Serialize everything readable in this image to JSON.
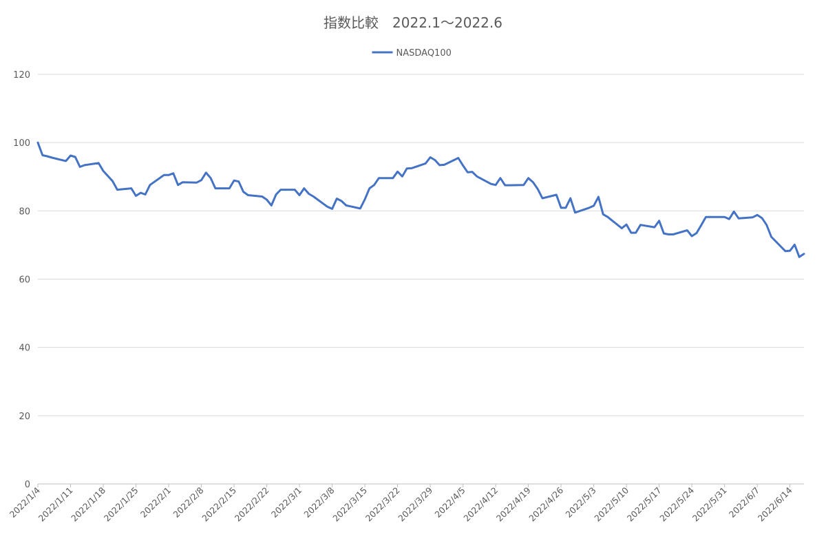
{
  "chart_data": {
    "type": "line",
    "title": "指数比較　2022.1～2022.6",
    "xlabel": "",
    "ylabel": "",
    "ylim": [
      0,
      120
    ],
    "yticks": [
      0,
      20,
      40,
      60,
      80,
      100,
      120
    ],
    "grid": true,
    "legend_position": "top",
    "x_tick_labels": [
      "2022/1/4",
      "2022/1/11",
      "2022/1/18",
      "2022/1/25",
      "2022/2/1",
      "2022/2/8",
      "2022/2/15",
      "2022/2/22",
      "2022/3/1",
      "2022/3/8",
      "2022/3/15",
      "2022/3/22",
      "2022/3/29",
      "2022/4/5",
      "2022/4/12",
      "2022/4/19",
      "2022/4/26",
      "2022/5/3",
      "2022/5/10",
      "2022/5/17",
      "2022/5/24",
      "2022/5/31",
      "2022/6/7",
      "2022/6/14"
    ],
    "x_range": [
      "2022/1/4",
      "2022/6/17"
    ],
    "series": [
      {
        "name": "NASDAQ100",
        "color": "#4472C4",
        "points": [
          [
            "2022/1/4",
            100
          ],
          [
            "2022/1/5",
            96.3
          ],
          [
            "2022/1/6",
            96
          ],
          [
            "2022/1/7",
            95.6
          ],
          [
            "2022/1/10",
            94.6
          ],
          [
            "2022/1/11",
            96.2
          ],
          [
            "2022/1/12",
            95.8
          ],
          [
            "2022/1/13",
            92.9
          ],
          [
            "2022/1/14",
            93.4
          ],
          [
            "2022/1/17",
            94
          ],
          [
            "2022/1/18",
            91.7
          ],
          [
            "2022/1/19",
            90.2
          ],
          [
            "2022/1/20",
            88.7
          ],
          [
            "2022/1/21",
            86.2
          ],
          [
            "2022/1/24",
            86.6
          ],
          [
            "2022/1/25",
            84.4
          ],
          [
            "2022/1/26",
            85.3
          ],
          [
            "2022/1/27",
            84.8
          ],
          [
            "2022/1/28",
            87.6
          ],
          [
            "2022/1/31",
            90.5
          ],
          [
            "2022/2/1",
            90.5
          ],
          [
            "2022/2/2",
            91
          ],
          [
            "2022/2/3",
            87.6
          ],
          [
            "2022/2/4",
            88.4
          ],
          [
            "2022/2/7",
            88.3
          ],
          [
            "2022/2/8",
            89
          ],
          [
            "2022/2/9",
            91.2
          ],
          [
            "2022/2/10",
            89.6
          ],
          [
            "2022/2/11",
            86.6
          ],
          [
            "2022/2/14",
            86.6
          ],
          [
            "2022/2/15",
            88.9
          ],
          [
            "2022/2/16",
            88.6
          ],
          [
            "2022/2/17",
            85.6
          ],
          [
            "2022/2/18",
            84.6
          ],
          [
            "2022/2/21",
            84.2
          ],
          [
            "2022/2/22",
            83.3
          ],
          [
            "2022/2/23",
            81.6
          ],
          [
            "2022/2/24",
            84.8
          ],
          [
            "2022/2/25",
            86.2
          ],
          [
            "2022/2/28",
            86.2
          ],
          [
            "2022/3/1",
            84.6
          ],
          [
            "2022/3/2",
            86.6
          ],
          [
            "2022/3/3",
            85
          ],
          [
            "2022/3/4",
            84.2
          ],
          [
            "2022/3/7",
            81.2
          ],
          [
            "2022/3/8",
            80.6
          ],
          [
            "2022/3/9",
            83.6
          ],
          [
            "2022/3/10",
            82.9
          ],
          [
            "2022/3/11",
            81.6
          ],
          [
            "2022/3/14",
            80.7
          ],
          [
            "2022/3/15",
            83.4
          ],
          [
            "2022/3/16",
            86.6
          ],
          [
            "2022/3/17",
            87.6
          ],
          [
            "2022/3/18",
            89.6
          ],
          [
            "2022/3/21",
            89.6
          ],
          [
            "2022/3/22",
            91.5
          ],
          [
            "2022/3/23",
            90.1
          ],
          [
            "2022/3/24",
            92.4
          ],
          [
            "2022/3/25",
            92.5
          ],
          [
            "2022/3/28",
            93.9
          ],
          [
            "2022/3/29",
            95.7
          ],
          [
            "2022/3/30",
            94.9
          ],
          [
            "2022/3/31",
            93.4
          ],
          [
            "2022/4/1",
            93.5
          ],
          [
            "2022/4/4",
            95.5
          ],
          [
            "2022/4/5",
            93.3
          ],
          [
            "2022/4/6",
            91.3
          ],
          [
            "2022/4/7",
            91.4
          ],
          [
            "2022/4/8",
            90.1
          ],
          [
            "2022/4/11",
            87.9
          ],
          [
            "2022/4/12",
            87.6
          ],
          [
            "2022/4/13",
            89.6
          ],
          [
            "2022/4/14",
            87.5
          ],
          [
            "2022/4/15",
            87.5
          ],
          [
            "2022/4/18",
            87.6
          ],
          [
            "2022/4/19",
            89.6
          ],
          [
            "2022/4/20",
            88.4
          ],
          [
            "2022/4/21",
            86.4
          ],
          [
            "2022/4/22",
            83.7
          ],
          [
            "2022/4/25",
            84.7
          ],
          [
            "2022/4/26",
            80.9
          ],
          [
            "2022/4/27",
            80.9
          ],
          [
            "2022/4/28",
            83.7
          ],
          [
            "2022/4/29",
            79.5
          ],
          [
            "2022/5/2",
            80.9
          ],
          [
            "2022/5/3",
            81.5
          ],
          [
            "2022/5/4",
            84.1
          ],
          [
            "2022/5/5",
            79
          ],
          [
            "2022/5/6",
            78.2
          ],
          [
            "2022/5/9",
            74.9
          ],
          [
            "2022/5/10",
            76
          ],
          [
            "2022/5/11",
            73.6
          ],
          [
            "2022/5/12",
            73.6
          ],
          [
            "2022/5/13",
            75.9
          ],
          [
            "2022/5/16",
            75.2
          ],
          [
            "2022/5/17",
            77.1
          ],
          [
            "2022/5/18",
            73.4
          ],
          [
            "2022/5/19",
            73.1
          ],
          [
            "2022/5/20",
            73.1
          ],
          [
            "2022/5/23",
            74.3
          ],
          [
            "2022/5/24",
            72.6
          ],
          [
            "2022/5/25",
            73.5
          ],
          [
            "2022/5/26",
            75.8
          ],
          [
            "2022/5/27",
            78.2
          ],
          [
            "2022/5/30",
            78.2
          ],
          [
            "2022/5/31",
            78.2
          ],
          [
            "2022/6/1",
            77.6
          ],
          [
            "2022/6/2",
            79.8
          ],
          [
            "2022/6/3",
            77.8
          ],
          [
            "2022/6/6",
            78.1
          ],
          [
            "2022/6/7",
            78.8
          ],
          [
            "2022/6/8",
            77.9
          ],
          [
            "2022/6/9",
            75.9
          ],
          [
            "2022/6/10",
            72.4
          ],
          [
            "2022/6/13",
            68.2
          ],
          [
            "2022/6/14",
            68.3
          ],
          [
            "2022/6/15",
            70.1
          ],
          [
            "2022/6/16",
            66.5
          ],
          [
            "2022/6/17",
            67.4
          ]
        ]
      }
    ]
  }
}
